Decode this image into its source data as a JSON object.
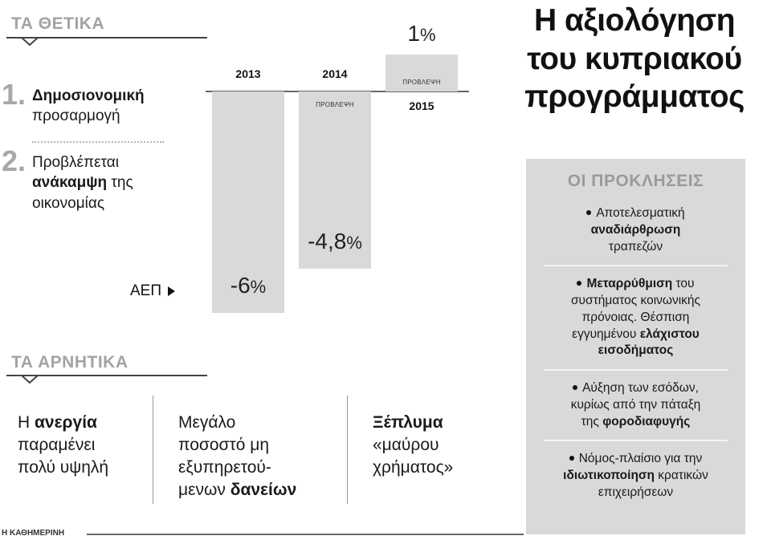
{
  "positives": {
    "title": "ΤΑ ΘΕΤΙΚΑ",
    "items": [
      {
        "num": "1.",
        "bold": "Δημοσιονομική",
        "rest": "προσαρμογή"
      },
      {
        "num": "2.",
        "line1": "Προβλέπεται",
        "bold": "ανάκαμψη",
        "rest_inline": " της",
        "line3": "οικονομίας"
      }
    ]
  },
  "chart_data": {
    "type": "bar",
    "categories": [
      "2013",
      "2014",
      "2015"
    ],
    "values": [
      -6,
      -4.8,
      1
    ],
    "value_labels": [
      "-6",
      "-4,8",
      "1"
    ],
    "unit": "%",
    "forecast_label": "ΠΡΟΒΛΕΨΗ",
    "forecast": [
      false,
      true,
      true
    ],
    "series_label": "ΑΕΠ",
    "bar_color": "#d9d9d9",
    "ylim": [
      -6.2,
      1.3
    ]
  },
  "negatives": {
    "title": "ΤΑ ΑΡΝΗΤΙΚΑ",
    "col1": {
      "pre": "Η ",
      "bold": "ανεργία",
      "line2": "παραμένει",
      "line3": "πολύ υψηλή"
    },
    "col2": {
      "line1": "Μεγάλο",
      "line2": "ποσοστό μη",
      "line3": "εξυπηρετού-",
      "line4_pre": "μενων ",
      "line4_bold": "δανείων"
    },
    "col3": {
      "bold": "Ξέπλυμα",
      "line2": "«μαύρου",
      "line3": "χρήματος»"
    }
  },
  "title": {
    "line1": "Η αξιολόγηση",
    "line2": "του κυπριακού",
    "line3": "προγράμματος"
  },
  "challenges": {
    "title": "ΟΙ ΠΡΟΚΛΗΣΕΙΣ",
    "item1": {
      "line1": "Αποτελεσματική",
      "bold": "αναδιάρθρωση",
      "line3": "τραπεζών"
    },
    "item2": {
      "bold1": "Μεταρρύθμιση",
      "line1_rest": " του",
      "line2": "συστήματος κοινωνικής",
      "line3": "πρόνοιας. Θέσπιση",
      "line4_pre": "εγγυημένου ",
      "line4_bold": "ελάχιστου",
      "line5_bold": "εισοδήματος"
    },
    "item3": {
      "line1": "Αύξηση των εσόδων,",
      "line2": "κυρίως από την πάταξη",
      "line3_pre": "της ",
      "line3_bold": "φοροδιαφυγής"
    },
    "item4": {
      "line1": "Νόμος-πλαίσιο για την",
      "line2_bold": "ιδιωτικοποίηση",
      "line2_rest": " κρατικών",
      "line3": "επιχειρήσεων"
    }
  },
  "footer": {
    "source": "Η ΚΑΘΗΜΕΡΙΝΗ"
  }
}
